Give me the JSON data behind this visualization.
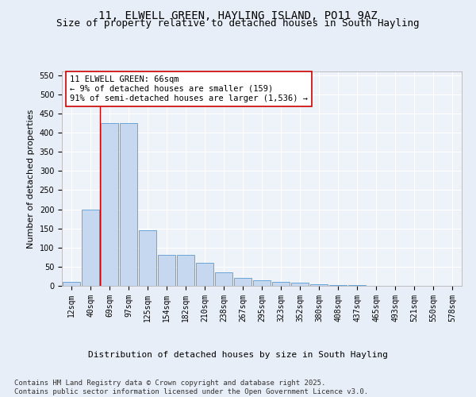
{
  "title_line1": "11, ELWELL GREEN, HAYLING ISLAND, PO11 9AZ",
  "title_line2": "Size of property relative to detached houses in South Hayling",
  "xlabel": "Distribution of detached houses by size in South Hayling",
  "ylabel": "Number of detached properties",
  "categories": [
    "12sqm",
    "40sqm",
    "69sqm",
    "97sqm",
    "125sqm",
    "154sqm",
    "182sqm",
    "210sqm",
    "238sqm",
    "267sqm",
    "295sqm",
    "323sqm",
    "352sqm",
    "380sqm",
    "408sqm",
    "437sqm",
    "465sqm",
    "493sqm",
    "521sqm",
    "550sqm",
    "578sqm"
  ],
  "values": [
    10,
    200,
    425,
    425,
    145,
    80,
    80,
    60,
    35,
    20,
    15,
    10,
    8,
    4,
    3,
    3,
    1,
    0,
    0,
    0,
    1
  ],
  "bar_color": "#c5d8f0",
  "bar_edge_color": "#5b9bd5",
  "vline_color": "#cc0000",
  "annotation_text": "11 ELWELL GREEN: 66sqm\n← 9% of detached houses are smaller (159)\n91% of semi-detached houses are larger (1,536) →",
  "annotation_box_color": "#ffffff",
  "annotation_box_edge": "#cc0000",
  "bg_color": "#e8eef7",
  "plot_bg_color": "#eef2f9",
  "grid_color": "#ffffff",
  "ylim": [
    0,
    560
  ],
  "yticks": [
    0,
    50,
    100,
    150,
    200,
    250,
    300,
    350,
    400,
    450,
    500,
    550
  ],
  "footnote": "Contains HM Land Registry data © Crown copyright and database right 2025.\nContains public sector information licensed under the Open Government Licence v3.0.",
  "title_fontsize": 10,
  "subtitle_fontsize": 9,
  "axis_label_fontsize": 8,
  "tick_fontsize": 7,
  "annotation_fontsize": 7.5,
  "footnote_fontsize": 6.5
}
